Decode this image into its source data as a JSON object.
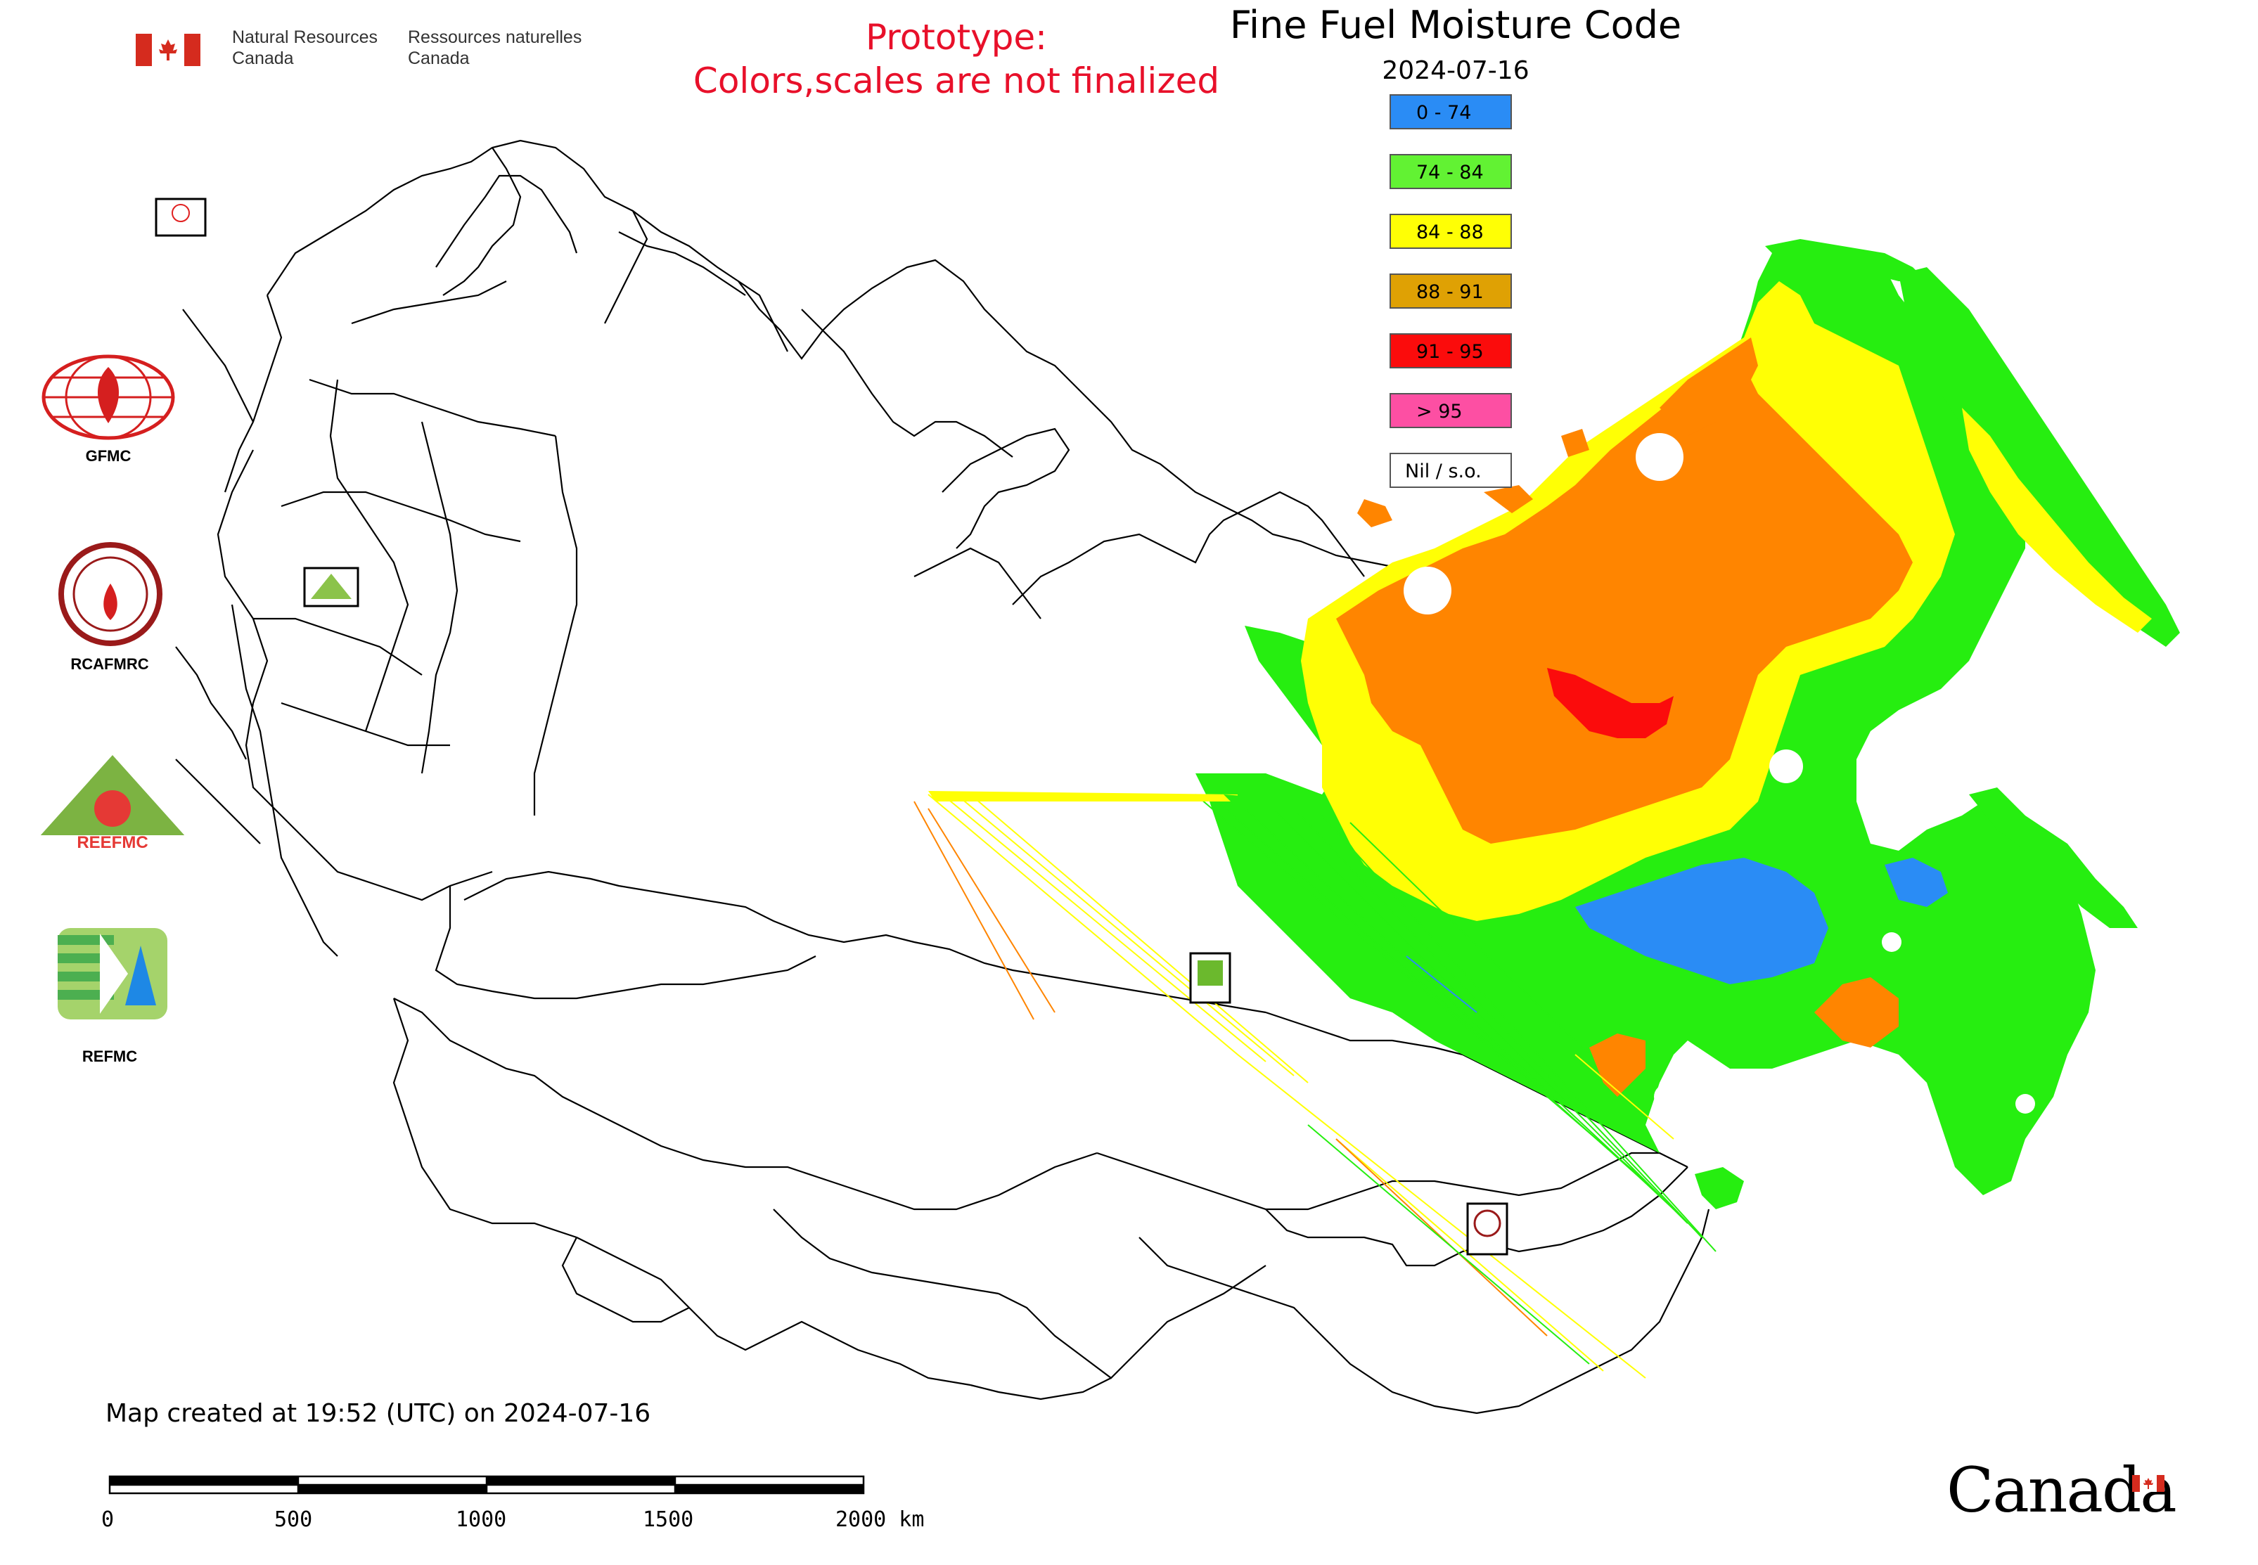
{
  "header": {
    "agency_en_line1": "Natural Resources",
    "agency_en_line2": "Canada",
    "agency_fr_line1": "Ressources naturelles",
    "agency_fr_line2": "Canada"
  },
  "prototype_notice": {
    "line1": "Prototype:",
    "line2": "Colors,scales are not finalized"
  },
  "map": {
    "title": "Fine Fuel Moisture Code",
    "date": "2024-07-16"
  },
  "legend": [
    {
      "label": "0 - 74",
      "color": "#2a8cf5"
    },
    {
      "label": "74 - 84",
      "color": "#62f233"
    },
    {
      "label": "84 - 88",
      "color": "#ffff05"
    },
    {
      "label": "88 - 91",
      "color": "#dfa104"
    },
    {
      "label": "91 - 95",
      "color": "#fb0c0c"
    },
    {
      "label": "> 95",
      "color": "#fd4fa3"
    },
    {
      "label": "Nil / s.o.",
      "color": "#ffffff"
    }
  ],
  "logos": [
    {
      "label": "GFMC",
      "icon": "gfmc-logo-icon"
    },
    {
      "label": "RCAFMRC",
      "icon": "rcafmrc-logo-icon"
    },
    {
      "label": "",
      "icon": "reefmc-logo-icon"
    },
    {
      "label": "REFMC",
      "icon": "refmc-logo-icon"
    }
  ],
  "footer": {
    "created": "Map created at 19:52 (UTC) on 2024-07-16",
    "scale_ticks": [
      "0",
      "500",
      "1000",
      "1500",
      "2000 km"
    ],
    "wordmark": "Canada"
  },
  "colors": {
    "orange_region": "#ff8500",
    "green_region": "#26ee10",
    "yellow_region": "#ffff05",
    "blue_region": "#2a8cf5",
    "red_region": "#fb0c0c",
    "prototype_text": "#e8102a"
  }
}
